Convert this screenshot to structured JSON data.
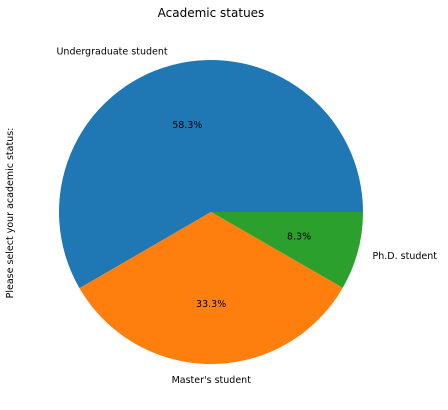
{
  "chart_data": {
    "type": "pie",
    "title": "Academic statues",
    "ylabel": "Please select your academic status:",
    "categories": [
      "Undergraduate student",
      "Master's student",
      "Ph.D. student"
    ],
    "values": [
      58.3,
      33.3,
      8.3
    ],
    "value_labels": [
      "58.3%",
      "33.3%",
      "8.3%"
    ],
    "colors": [
      "#1f77b4",
      "#ff7f0e",
      "#2ca02c"
    ],
    "start_angle_deg": 0,
    "direction": "counterclockwise"
  }
}
